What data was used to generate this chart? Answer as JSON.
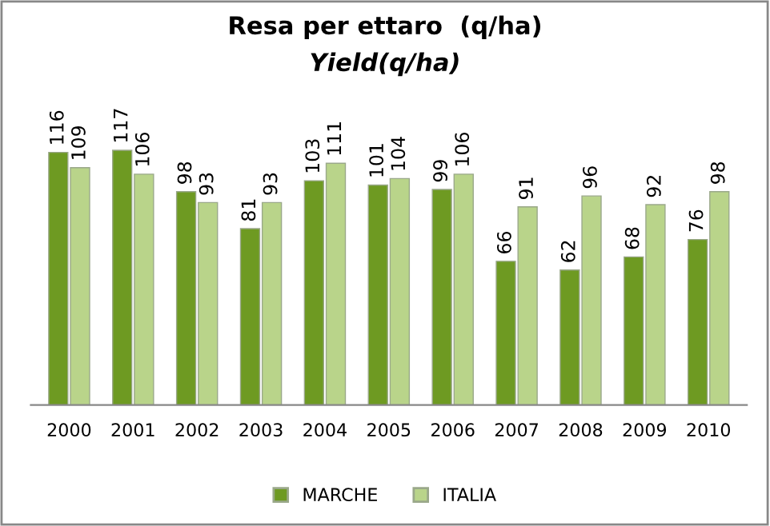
{
  "chart_data": {
    "type": "bar",
    "title": "Resa per ettaro  (q/ha)",
    "subtitle": "Yield(q/ha)",
    "categories": [
      "2000",
      "2001",
      "2002",
      "2003",
      "2004",
      "2005",
      "2006",
      "2007",
      "2008",
      "2009",
      "2010"
    ],
    "series": [
      {
        "name": "MARCHE",
        "color": "#6e9a22",
        "values": [
          116,
          117,
          98,
          81,
          103,
          101,
          99,
          66,
          62,
          68,
          76
        ]
      },
      {
        "name": "ITALIA",
        "color": "#b9d48a",
        "values": [
          109,
          106,
          93,
          93,
          111,
          104,
          106,
          91,
          96,
          92,
          98
        ]
      }
    ],
    "data_labels": true,
    "legend": "bottom",
    "grid": false
  }
}
